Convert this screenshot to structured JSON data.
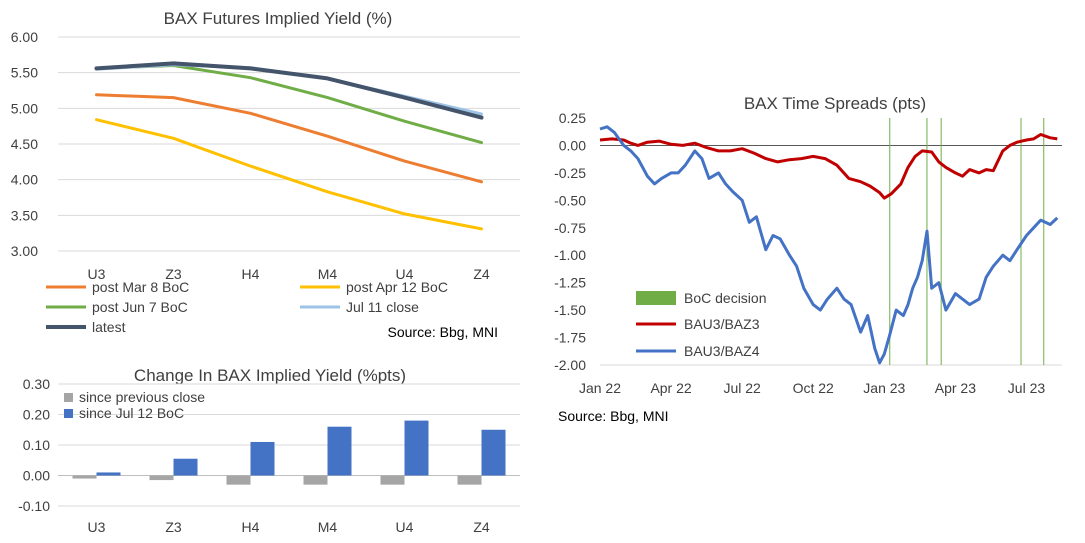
{
  "chart_data": [
    {
      "id": "levels",
      "type": "line",
      "title": "BAX Futures Implied Yield (%)",
      "categories": [
        "U3",
        "Z3",
        "H4",
        "M4",
        "U4",
        "Z4"
      ],
      "ylim": [
        3.0,
        6.0
      ],
      "yticks": [
        "6.00",
        "5.50",
        "5.00",
        "4.50",
        "4.00",
        "3.50",
        "3.00"
      ],
      "ytick_values": [
        6.0,
        5.5,
        5.0,
        4.5,
        4.0,
        3.5,
        3.0
      ],
      "grid": true,
      "series": [
        {
          "name": "post Mar 8 BoC",
          "color": "#ED7D31",
          "values": [
            5.19,
            5.15,
            4.93,
            4.61,
            4.26,
            3.97
          ]
        },
        {
          "name": "post Apr 12 BoC",
          "color": "#FFC000",
          "values": [
            4.84,
            4.58,
            4.19,
            3.83,
            3.52,
            3.31
          ]
        },
        {
          "name": "post Jun 7 BoC",
          "color": "#70AD47",
          "values": [
            5.56,
            5.6,
            5.43,
            5.15,
            4.82,
            4.52
          ]
        },
        {
          "name": "Jul 11 close",
          "color": "#9DC3E6",
          "values": [
            5.55,
            5.61,
            5.57,
            5.42,
            5.17,
            4.92
          ]
        },
        {
          "name": "latest",
          "color": "#44546A",
          "values": [
            5.56,
            5.63,
            5.56,
            5.42,
            5.15,
            4.87
          ]
        }
      ],
      "source": "Source: Bbg, MNI"
    },
    {
      "id": "changes",
      "type": "bar",
      "title": "Change In BAX Implied Yield (%pts)",
      "categories": [
        "U3",
        "Z3",
        "H4",
        "M4",
        "U4",
        "Z4"
      ],
      "ylim": [
        -0.1,
        0.3
      ],
      "yticks": [
        "0.30",
        "0.20",
        "0.10",
        "0.00",
        "-0.10"
      ],
      "ytick_values": [
        0.3,
        0.2,
        0.1,
        0.0,
        -0.1
      ],
      "grid": true,
      "series": [
        {
          "name": "since previous close",
          "color": "#A5A5A5",
          "values": [
            -0.01,
            -0.015,
            -0.03,
            -0.03,
            -0.03,
            -0.03
          ]
        },
        {
          "name": "since Jul 12 BoC",
          "color": "#4472C4",
          "values": [
            0.01,
            0.055,
            0.11,
            0.16,
            0.18,
            0.15
          ]
        }
      ]
    },
    {
      "id": "spreads",
      "type": "line",
      "title": "BAX Time Spreads (pts)",
      "x_start": "Jan 22",
      "x_end": "Aug 23",
      "xticks": [
        "Jan 22",
        "Apr 22",
        "Jul 22",
        "Oct 22",
        "Jan 23",
        "Apr 23",
        "Jul 23"
      ],
      "ylim": [
        -2.0,
        0.25
      ],
      "yticks": [
        "0.25",
        "0.00",
        "-0.25",
        "-0.50",
        "-0.75",
        "-1.00",
        "-1.25",
        "-1.50",
        "-1.75",
        "-2.00"
      ],
      "ytick_values": [
        0.25,
        0.0,
        -0.25,
        -0.5,
        -0.75,
        -1.0,
        -1.25,
        -1.5,
        -1.75,
        -2.0
      ],
      "boc_decisions_month_offset": [
        12.23,
        13.8,
        14.4,
        17.77,
        18.73
      ],
      "series": [
        {
          "name": "BoC decision",
          "color": "#70AD47"
        },
        {
          "name": "BAU3/BAZ3",
          "color": "#C00000",
          "month_offset": [
            0,
            0.5,
            1,
            1.3,
            1.6,
            2,
            2.5,
            3,
            3.5,
            4,
            4.5,
            5,
            5.5,
            6,
            6.5,
            7,
            7.5,
            8,
            8.5,
            9,
            9.5,
            10,
            10.5,
            11,
            11.4,
            11.8,
            12,
            12.3,
            12.7,
            13,
            13.3,
            13.6,
            14,
            14.3,
            14.6,
            15,
            15.3,
            15.6,
            16,
            16.3,
            16.6,
            17,
            17.3,
            17.6,
            18,
            18.3,
            18.6,
            19,
            19.3
          ],
          "values": [
            0.05,
            0.06,
            0.05,
            0.02,
            0.0,
            0.03,
            0.04,
            0.01,
            0.0,
            0.02,
            -0.02,
            -0.05,
            -0.05,
            -0.03,
            -0.07,
            -0.12,
            -0.15,
            -0.13,
            -0.12,
            -0.1,
            -0.12,
            -0.18,
            -0.3,
            -0.33,
            -0.37,
            -0.43,
            -0.48,
            -0.44,
            -0.35,
            -0.2,
            -0.1,
            -0.05,
            -0.06,
            -0.15,
            -0.2,
            -0.25,
            -0.28,
            -0.22,
            -0.25,
            -0.22,
            -0.23,
            -0.05,
            0.0,
            0.03,
            0.05,
            0.06,
            0.1,
            0.07,
            0.06
          ]
        },
        {
          "name": "BAU3/BAZ4",
          "color": "#4472C4",
          "month_offset": [
            0,
            0.3,
            0.6,
            1,
            1.3,
            1.6,
            2,
            2.3,
            2.6,
            3,
            3.3,
            3.6,
            4,
            4.3,
            4.6,
            5,
            5.3,
            5.6,
            6,
            6.3,
            6.6,
            7,
            7.3,
            7.6,
            8,
            8.3,
            8.6,
            9,
            9.3,
            9.6,
            10,
            10.3,
            10.6,
            11,
            11.3,
            11.6,
            11.8,
            12,
            12.2,
            12.5,
            12.8,
            13,
            13.2,
            13.4,
            13.6,
            13.8,
            14,
            14.3,
            14.6,
            15,
            15.3,
            15.6,
            16,
            16.3,
            16.6,
            17,
            17.3,
            17.6,
            18,
            18.3,
            18.6,
            19,
            19.3
          ],
          "values": [
            0.15,
            0.17,
            0.12,
            0.0,
            -0.05,
            -0.12,
            -0.28,
            -0.35,
            -0.3,
            -0.25,
            -0.25,
            -0.18,
            -0.05,
            -0.12,
            -0.3,
            -0.25,
            -0.35,
            -0.42,
            -0.5,
            -0.7,
            -0.65,
            -0.95,
            -0.82,
            -0.85,
            -1.0,
            -1.1,
            -1.3,
            -1.45,
            -1.5,
            -1.4,
            -1.3,
            -1.4,
            -1.45,
            -1.7,
            -1.55,
            -1.85,
            -1.98,
            -1.9,
            -1.75,
            -1.5,
            -1.55,
            -1.45,
            -1.3,
            -1.2,
            -1.05,
            -0.78,
            -1.3,
            -1.25,
            -1.5,
            -1.35,
            -1.4,
            -1.45,
            -1.4,
            -1.2,
            -1.1,
            -1.0,
            -1.05,
            -0.95,
            -0.82,
            -0.75,
            -0.68,
            -0.72,
            -0.66
          ]
        }
      ],
      "source": "Source: Bbg, MNI"
    }
  ]
}
